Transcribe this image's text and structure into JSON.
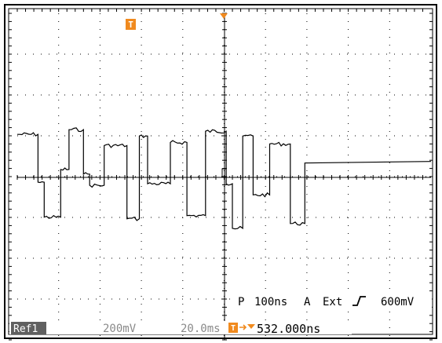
{
  "markers": {
    "trigger_position_glyph": "T",
    "trigger_pointer_color": "#f08a1e",
    "ref_badge_color": "#606060"
  },
  "readout": {
    "top_line": {
      "mode": "P",
      "timebase": "100ns",
      "channel": "A",
      "source": "Ext",
      "slope_icon": "rising-edge-icon",
      "trigger_level": "600mV"
    },
    "bottom_line": {
      "ref_label": "Ref1",
      "vertical_scale": "200mV",
      "ref_timebase": "20.0ms",
      "trigger_offset_icon": "trigger-offset-icon",
      "trigger_offset": "532.000ns"
    }
  },
  "waveform": {
    "trace_color": "#000000",
    "grid_color": "#000000",
    "segments": [
      {
        "t": 0.0,
        "v": 1.35
      },
      {
        "t": 0.5,
        "v": 1.35
      },
      {
        "t": 0.5,
        "v": -0.15
      },
      {
        "t": 0.65,
        "v": -0.15
      },
      {
        "t": 0.65,
        "v": -1.25
      },
      {
        "t": 1.05,
        "v": -1.25
      },
      {
        "t": 1.05,
        "v": 0.25
      },
      {
        "t": 1.25,
        "v": 0.25
      },
      {
        "t": 1.25,
        "v": 1.5
      },
      {
        "t": 1.6,
        "v": 1.5
      },
      {
        "t": 1.6,
        "v": 0.1
      },
      {
        "t": 1.75,
        "v": 0.1
      },
      {
        "t": 1.75,
        "v": -0.25
      },
      {
        "t": 2.1,
        "v": -0.25
      },
      {
        "t": 2.1,
        "v": 1.0
      },
      {
        "t": 2.65,
        "v": 1.0
      },
      {
        "t": 2.65,
        "v": -1.3
      },
      {
        "t": 2.95,
        "v": -1.3
      },
      {
        "t": 2.95,
        "v": 1.3
      },
      {
        "t": 3.15,
        "v": 1.3
      },
      {
        "t": 3.15,
        "v": -0.2
      },
      {
        "t": 3.7,
        "v": -0.2
      },
      {
        "t": 3.7,
        "v": 1.1
      },
      {
        "t": 4.1,
        "v": 1.1
      },
      {
        "t": 4.1,
        "v": -1.2
      },
      {
        "t": 4.55,
        "v": -1.2
      },
      {
        "t": 4.55,
        "v": 1.45
      },
      {
        "t": 5.05,
        "v": 1.45
      },
      {
        "t": 5.05,
        "v": -0.2
      },
      {
        "t": 5.2,
        "v": -0.2
      },
      {
        "t": 5.2,
        "v": -1.6
      },
      {
        "t": 5.45,
        "v": -1.6
      },
      {
        "t": 5.45,
        "v": 1.3
      },
      {
        "t": 5.7,
        "v": 1.3
      },
      {
        "t": 5.7,
        "v": -0.55
      },
      {
        "t": 6.1,
        "v": -0.55
      },
      {
        "t": 6.1,
        "v": 1.05
      },
      {
        "t": 6.6,
        "v": 1.05
      },
      {
        "t": 6.6,
        "v": -1.45
      },
      {
        "t": 6.95,
        "v": -1.45
      },
      {
        "t": 6.95,
        "v": 0.45
      },
      {
        "t": 10.0,
        "v": 0.5
      }
    ]
  }
}
